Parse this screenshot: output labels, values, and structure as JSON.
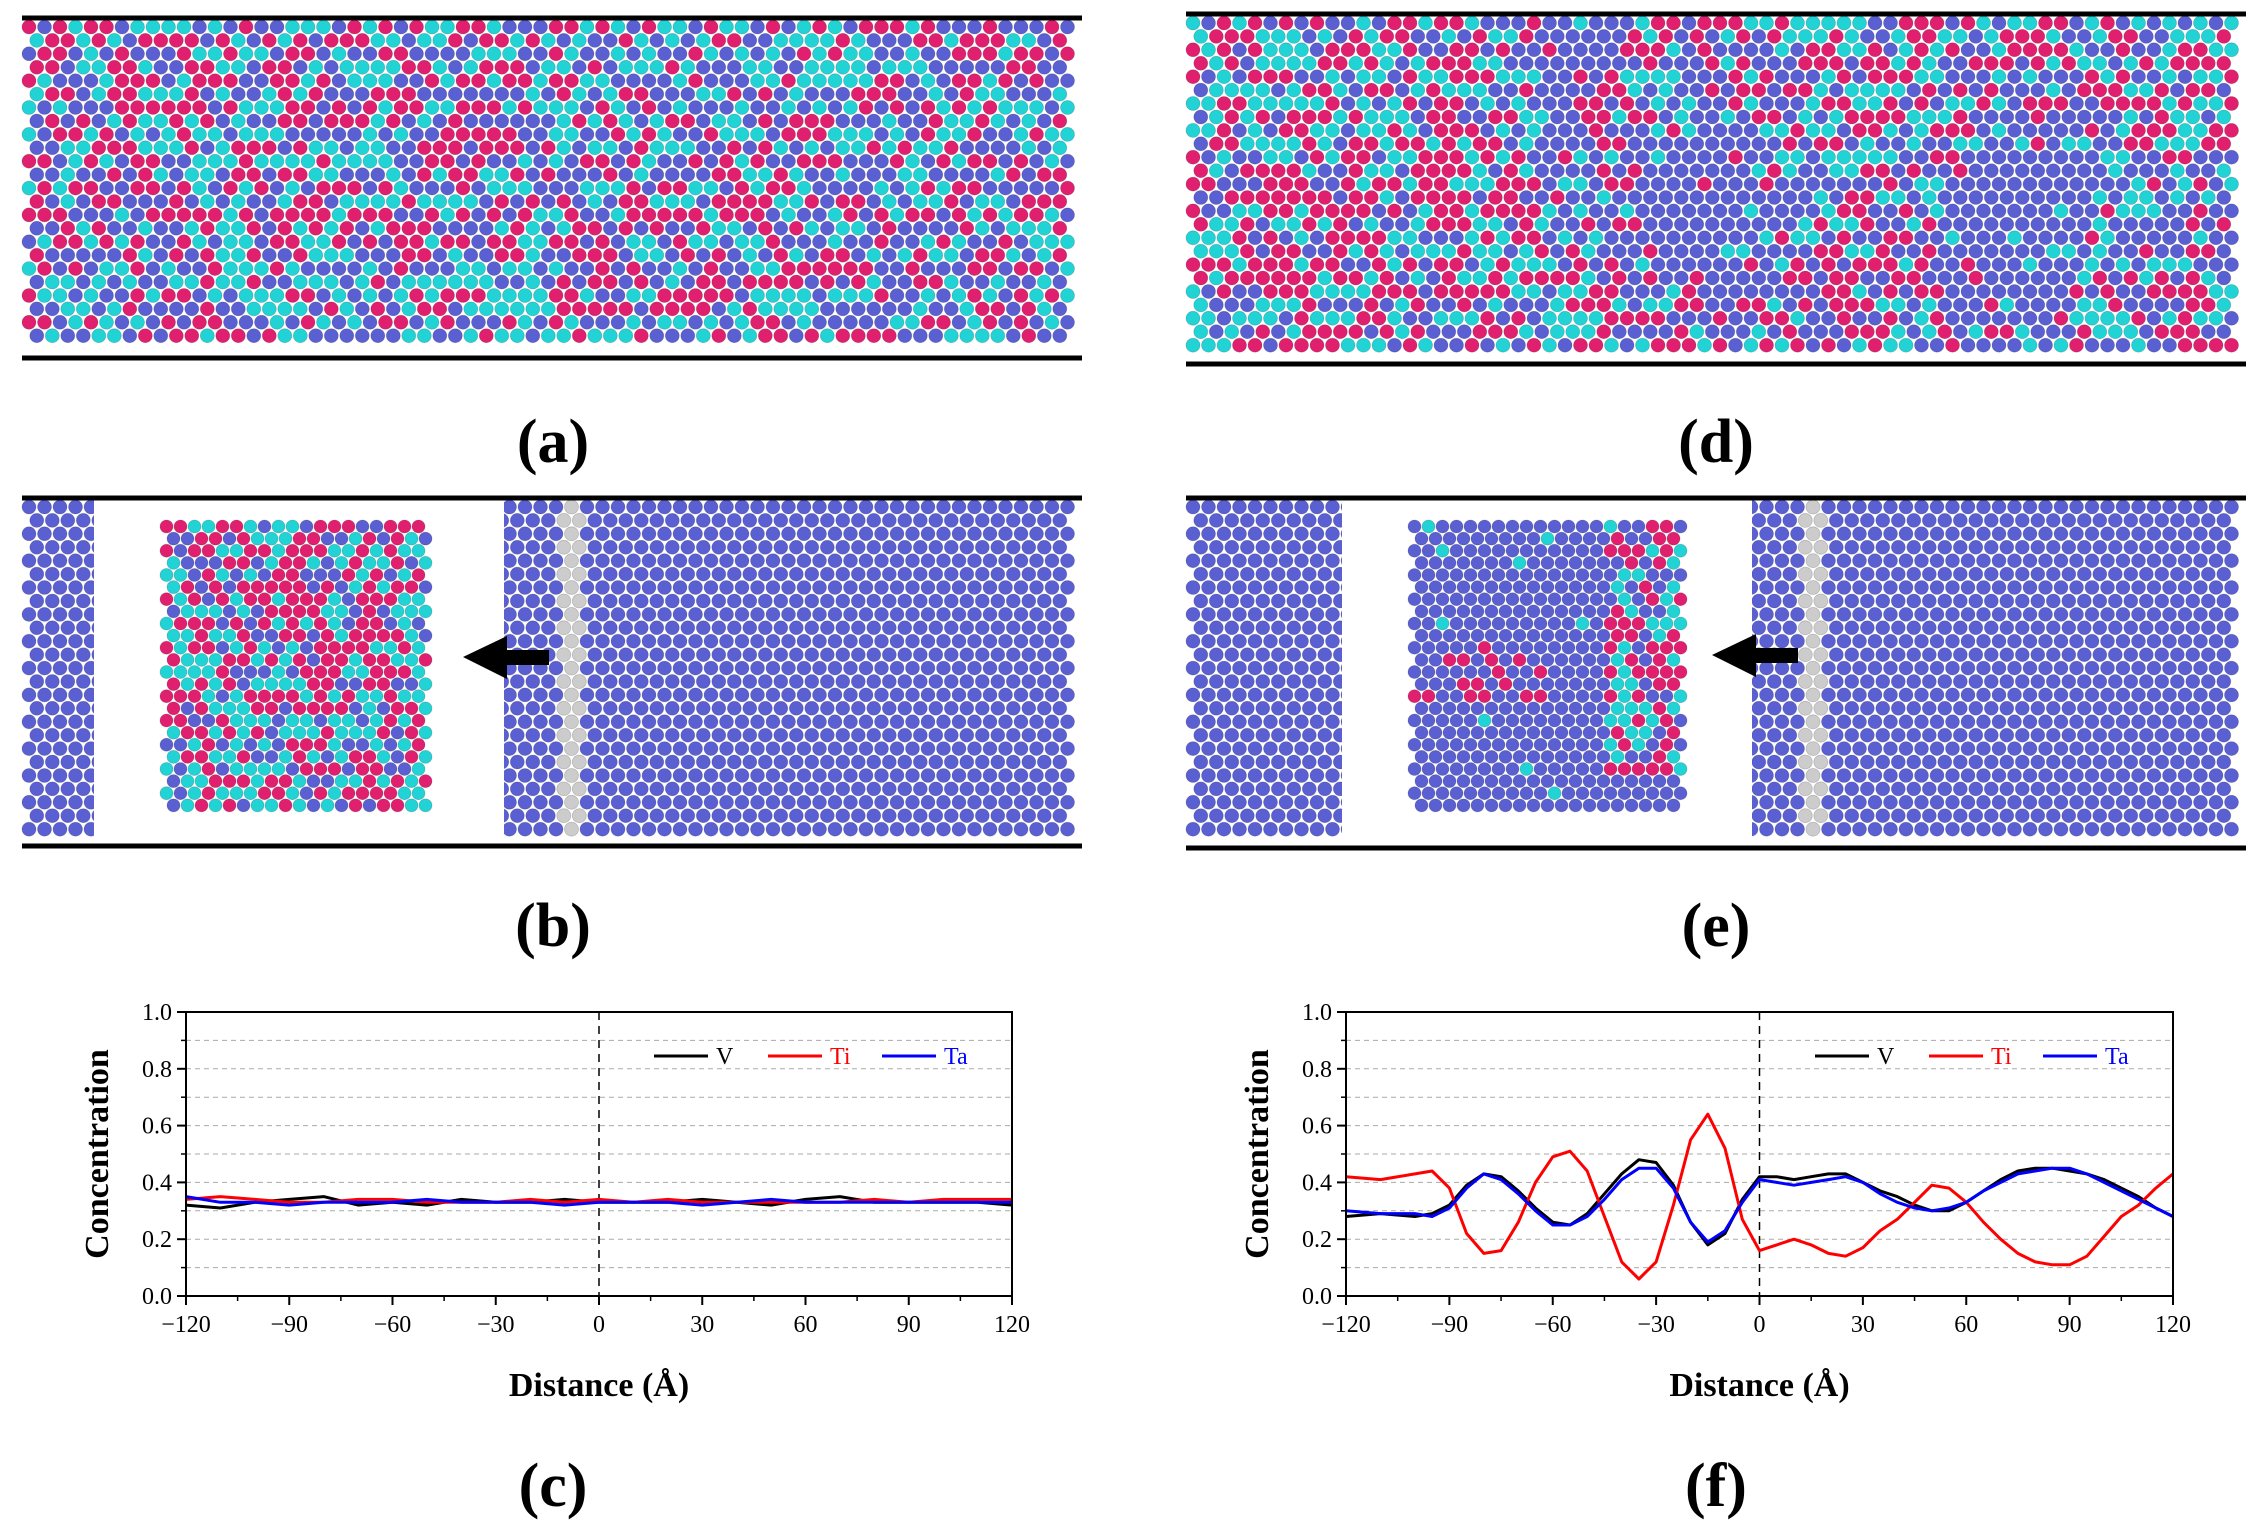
{
  "figure": {
    "panel_labels": {
      "a": "(a)",
      "b": "(b)",
      "c": "(c)",
      "d": "(d)",
      "e": "(e)",
      "f": "(f)"
    },
    "atom_colors": {
      "V": "#5a5fd2",
      "Ti": "#e0206e",
      "Ta": "#22d3d6",
      "boundary": "#cccccc"
    }
  },
  "chart_data": [
    {
      "id": "c",
      "type": "line",
      "title": "",
      "xlabel": "Distance (Å)",
      "ylabel": "Concentration",
      "xlim": [
        -120,
        120
      ],
      "ylim": [
        0,
        1.0
      ],
      "xticks": [
        -120,
        -90,
        -60,
        -30,
        0,
        30,
        60,
        90,
        120
      ],
      "xtick_labels": [
        "−120",
        "−90",
        "−60",
        "−30",
        "0",
        "30",
        "60",
        "90",
        "120"
      ],
      "yticks": [
        0.0,
        0.2,
        0.4,
        0.6,
        0.8,
        1.0
      ],
      "ytick_labels": [
        "0.0",
        "0.2",
        "0.4",
        "0.6",
        "0.8",
        "1.0"
      ],
      "grid": "horizontal dashed",
      "legend": "top-right",
      "x": [
        -120,
        -110,
        -100,
        -90,
        -80,
        -70,
        -60,
        -50,
        -40,
        -30,
        -20,
        -10,
        0,
        10,
        20,
        30,
        40,
        50,
        60,
        70,
        80,
        90,
        100,
        110,
        120
      ],
      "series": [
        {
          "name": "V",
          "color": "#000000",
          "values": [
            0.32,
            0.31,
            0.33,
            0.34,
            0.35,
            0.32,
            0.33,
            0.32,
            0.34,
            0.33,
            0.33,
            0.34,
            0.33,
            0.33,
            0.33,
            0.34,
            0.33,
            0.32,
            0.34,
            0.35,
            0.33,
            0.33,
            0.33,
            0.33,
            0.32
          ]
        },
        {
          "name": "Ti",
          "color": "#ff0000",
          "values": [
            0.34,
            0.35,
            0.34,
            0.33,
            0.33,
            0.34,
            0.34,
            0.33,
            0.33,
            0.33,
            0.34,
            0.33,
            0.34,
            0.33,
            0.34,
            0.33,
            0.33,
            0.33,
            0.33,
            0.33,
            0.34,
            0.33,
            0.34,
            0.34,
            0.34
          ]
        },
        {
          "name": "Ta",
          "color": "#0000ff",
          "values": [
            0.35,
            0.33,
            0.33,
            0.32,
            0.33,
            0.33,
            0.33,
            0.34,
            0.33,
            0.33,
            0.33,
            0.32,
            0.33,
            0.33,
            0.33,
            0.32,
            0.33,
            0.34,
            0.33,
            0.33,
            0.33,
            0.33,
            0.33,
            0.33,
            0.33
          ]
        }
      ]
    },
    {
      "id": "f",
      "type": "line",
      "title": "",
      "xlabel": "Distance (Å)",
      "ylabel": "Concentration",
      "xlim": [
        -120,
        120
      ],
      "ylim": [
        0,
        1.0
      ],
      "xticks": [
        -120,
        -90,
        -60,
        -30,
        0,
        30,
        60,
        90,
        120
      ],
      "xtick_labels": [
        "−120",
        "−90",
        "−60",
        "−30",
        "0",
        "30",
        "60",
        "90",
        "120"
      ],
      "yticks": [
        0.0,
        0.2,
        0.4,
        0.6,
        0.8,
        1.0
      ],
      "ytick_labels": [
        "0.0",
        "0.2",
        "0.4",
        "0.6",
        "0.8",
        "1.0"
      ],
      "grid": "horizontal dashed",
      "legend": "top-right",
      "x": [
        -120,
        -110,
        -100,
        -95,
        -90,
        -85,
        -80,
        -75,
        -70,
        -65,
        -60,
        -55,
        -50,
        -45,
        -40,
        -35,
        -30,
        -25,
        -20,
        -15,
        -10,
        -5,
        0,
        5,
        10,
        15,
        20,
        25,
        30,
        35,
        40,
        45,
        50,
        55,
        60,
        65,
        70,
        75,
        80,
        85,
        90,
        95,
        100,
        105,
        110,
        115,
        120
      ],
      "series": [
        {
          "name": "V",
          "color": "#000000",
          "values": [
            0.28,
            0.29,
            0.28,
            0.29,
            0.32,
            0.39,
            0.43,
            0.42,
            0.37,
            0.31,
            0.26,
            0.25,
            0.29,
            0.36,
            0.43,
            0.48,
            0.47,
            0.39,
            0.26,
            0.18,
            0.22,
            0.34,
            0.42,
            0.42,
            0.41,
            0.42,
            0.43,
            0.43,
            0.4,
            0.37,
            0.35,
            0.32,
            0.3,
            0.3,
            0.33,
            0.37,
            0.41,
            0.44,
            0.45,
            0.45,
            0.44,
            0.43,
            0.41,
            0.38,
            0.35,
            0.31,
            0.28
          ]
        },
        {
          "name": "Ti",
          "color": "#ff0000",
          "values": [
            0.42,
            0.41,
            0.43,
            0.44,
            0.38,
            0.22,
            0.15,
            0.16,
            0.26,
            0.4,
            0.49,
            0.51,
            0.44,
            0.28,
            0.12,
            0.06,
            0.12,
            0.32,
            0.55,
            0.64,
            0.52,
            0.27,
            0.16,
            0.18,
            0.2,
            0.18,
            0.15,
            0.14,
            0.17,
            0.23,
            0.27,
            0.33,
            0.39,
            0.38,
            0.33,
            0.26,
            0.2,
            0.15,
            0.12,
            0.11,
            0.11,
            0.14,
            0.21,
            0.28,
            0.32,
            0.38,
            0.43
          ]
        },
        {
          "name": "Ta",
          "color": "#0000ff",
          "values": [
            0.3,
            0.29,
            0.29,
            0.28,
            0.31,
            0.38,
            0.43,
            0.41,
            0.36,
            0.3,
            0.25,
            0.25,
            0.28,
            0.34,
            0.41,
            0.45,
            0.45,
            0.38,
            0.26,
            0.19,
            0.23,
            0.33,
            0.41,
            0.4,
            0.39,
            0.4,
            0.41,
            0.42,
            0.4,
            0.36,
            0.33,
            0.31,
            0.3,
            0.31,
            0.33,
            0.37,
            0.4,
            0.43,
            0.44,
            0.45,
            0.45,
            0.43,
            0.4,
            0.37,
            0.34,
            0.31,
            0.28
          ]
        }
      ]
    }
  ]
}
